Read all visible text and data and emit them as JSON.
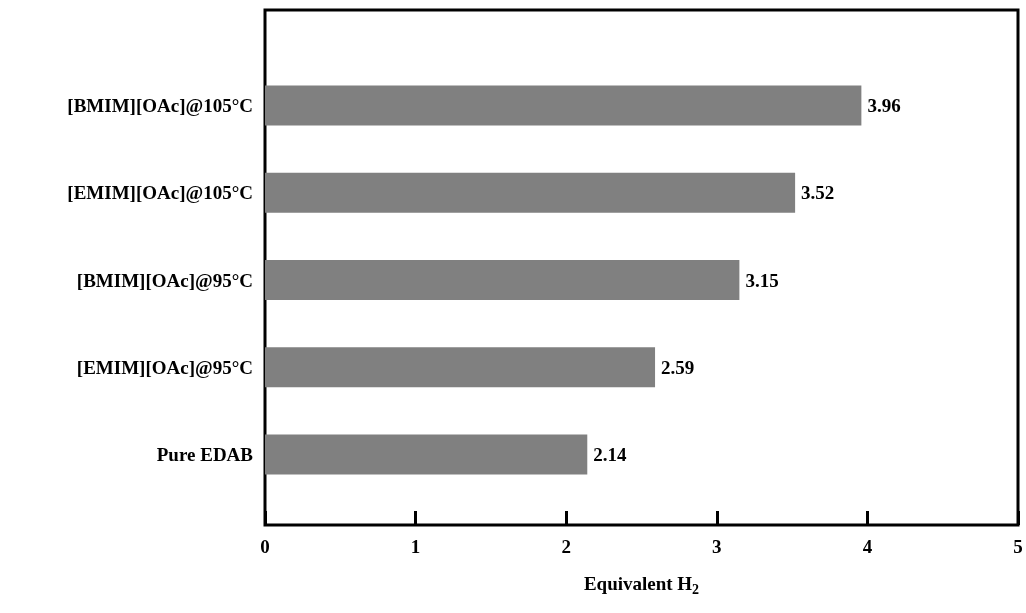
{
  "chart_data": {
    "type": "bar",
    "orientation": "horizontal",
    "xlabel": "Equivalent H$_{2}$",
    "categories": [
      "[BMIM][OAc]@105°C",
      "[EMIM][OAc]@105°C",
      "[BMIM][OAc]@95°C",
      "[EMIM][OAc]@95°C",
      "Pure EDAB"
    ],
    "values": [
      3.96,
      3.52,
      3.15,
      2.59,
      2.14
    ],
    "color": "#808080",
    "xlim": [
      0,
      5
    ],
    "xticks": [
      0,
      1,
      2,
      3,
      4,
      5
    ],
    "data_labels": true
  }
}
